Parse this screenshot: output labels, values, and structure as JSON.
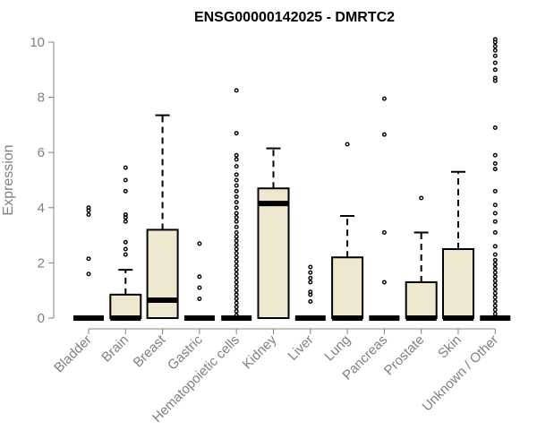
{
  "chart_data": {
    "type": "box",
    "title": "ENSG00000142025 - DMRTC2",
    "xlabel": "",
    "ylabel": "Expression",
    "ylim": [
      0,
      10
    ],
    "yticks": [
      "0",
      "2",
      "4",
      "6",
      "8",
      "10"
    ],
    "categories": [
      "Bladder",
      "Brain",
      "Breast",
      "Gastric",
      "Hematopoietic cells",
      "Kidney",
      "Liver",
      "Lung",
      "Pancreas",
      "Prostate",
      "Skin",
      "Unknown / Other"
    ],
    "boxes": [
      {
        "category": "Bladder",
        "min": 0,
        "q1": 0,
        "median": 0,
        "q3": 0,
        "max": 0,
        "outliers": [
          1.6,
          2.15,
          3.75,
          3.9,
          4.0
        ]
      },
      {
        "category": "Brain",
        "min": 0,
        "q1": 0,
        "median": 0,
        "q3": 0.85,
        "max": 1.75,
        "outliers": [
          2.3,
          2.5,
          2.75,
          3.5,
          3.65,
          3.75,
          4.6,
          5.0,
          5.45
        ]
      },
      {
        "category": "Breast",
        "min": 0,
        "q1": 0,
        "median": 0.65,
        "q3": 3.2,
        "max": 7.35,
        "outliers": []
      },
      {
        "category": "Gastric",
        "min": 0,
        "q1": 0,
        "median": 0,
        "q3": 0,
        "max": 0,
        "outliers": [
          0.7,
          1.1,
          1.5,
          2.7
        ]
      },
      {
        "category": "Hematopoietic cells",
        "min": 0,
        "q1": 0,
        "median": 0,
        "q3": 0,
        "max": 0,
        "outliers": [
          0.1,
          0.25,
          0.4,
          0.55,
          0.7,
          0.85,
          1.0,
          1.15,
          1.3,
          1.45,
          1.6,
          1.75,
          1.9,
          2.05,
          2.2,
          2.35,
          2.5,
          2.65,
          2.8,
          2.95,
          3.1,
          3.3,
          3.5,
          3.65,
          3.8,
          4.0,
          4.2,
          4.4,
          4.6,
          4.8,
          5.0,
          5.2,
          5.5,
          5.75,
          5.9,
          6.7,
          8.25
        ]
      },
      {
        "category": "Kidney",
        "min": 0,
        "q1": 0,
        "median": 4.15,
        "q3": 4.7,
        "max": 6.15,
        "outliers": []
      },
      {
        "category": "Liver",
        "min": 0,
        "q1": 0,
        "median": 0,
        "q3": 0,
        "max": 0,
        "outliers": [
          0.6,
          0.85,
          0.95,
          1.3,
          1.45,
          1.65,
          1.85
        ]
      },
      {
        "category": "Lung",
        "min": 0,
        "q1": 0,
        "median": 0,
        "q3": 2.2,
        "max": 3.7,
        "outliers": [
          6.3
        ]
      },
      {
        "category": "Pancreas",
        "min": 0,
        "q1": 0,
        "median": 0,
        "q3": 0,
        "max": 0,
        "outliers": [
          1.3,
          3.1,
          6.65,
          7.95
        ]
      },
      {
        "category": "Prostate",
        "min": 0,
        "q1": 0,
        "median": 0,
        "q3": 1.3,
        "max": 3.1,
        "outliers": [
          4.35
        ]
      },
      {
        "category": "Skin",
        "min": 0,
        "q1": 0,
        "median": 0,
        "q3": 2.5,
        "max": 5.3,
        "outliers": []
      },
      {
        "category": "Unknown / Other",
        "min": 0,
        "q1": 0,
        "median": 0,
        "q3": 0,
        "max": 0,
        "outliers": [
          0.15,
          0.3,
          0.45,
          0.6,
          0.75,
          0.9,
          1.05,
          1.2,
          1.35,
          1.5,
          1.65,
          1.8,
          1.95,
          2.1,
          2.3,
          2.6,
          3.1,
          3.5,
          3.8,
          4.1,
          4.6,
          5.4,
          5.6,
          5.9,
          6.9,
          8.6,
          8.7,
          9.0,
          9.25,
          9.5,
          9.7,
          9.85,
          10.0,
          10.1
        ]
      }
    ],
    "colors": {
      "box_fill": "#efe8d0",
      "box_stroke": "#000000",
      "axis": "#808080",
      "tick_text": "#808080",
      "title": "#000000"
    },
    "grid": false,
    "legend": "none"
  }
}
